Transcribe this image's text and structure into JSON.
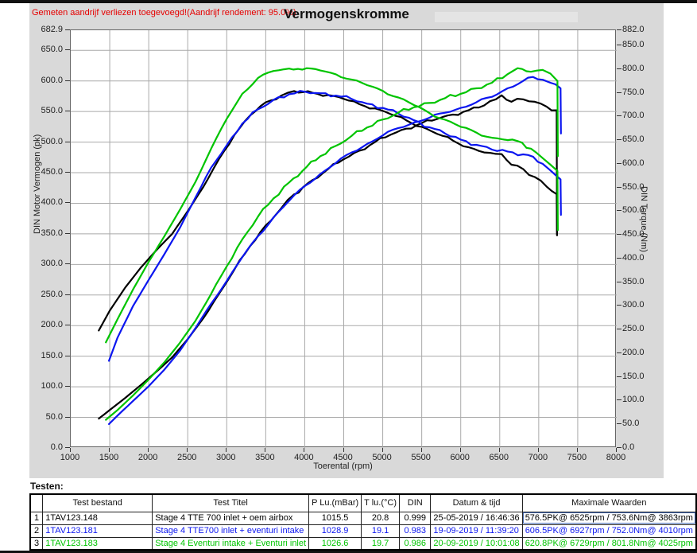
{
  "header": {
    "annotation": "Gemeten aandrijf verliezen toegevoegd!(Aandrijf rendement: 95.0%)",
    "title": "Vermogenskromme"
  },
  "chart_data": {
    "type": "line",
    "title": "Vermogenskromme",
    "xlabel": "Toerental (rpm)",
    "ylabel_left": "DIN Motor Vermogen (pk)",
    "ylabel_right": "DIN Torque (Nm)",
    "x_range": [
      1000,
      8000
    ],
    "y_left_range": [
      0,
      682.9
    ],
    "y_right_range": [
      0,
      882.0
    ],
    "grid": true,
    "x_ticks": [
      "1000",
      "1500",
      "2000",
      "2500",
      "3000",
      "3500",
      "4000",
      "4500",
      "5000",
      "5500",
      "6000",
      "6500",
      "7000",
      "7500",
      "8000"
    ],
    "y_left_ticks": [
      "682.9",
      "650.0",
      "600.0",
      "550.0",
      "500.0",
      "450.0",
      "400.0",
      "350.0",
      "300.0",
      "250.0",
      "200.0",
      "150.0",
      "100.0",
      "50.0",
      "0.0"
    ],
    "y_right_ticks": [
      "882.0",
      "850.0",
      "800.0",
      "750.0",
      "700.0",
      "650.0",
      "600.0",
      "550.0",
      "500.0",
      "450.0",
      "400.0",
      "350.0",
      "300.0",
      "250.0",
      "200.0",
      "150.0",
      "100.0",
      "50.0",
      "0.0"
    ],
    "series": [
      {
        "name": "1TAV123.148",
        "label": "Stage 4 TTE 700 inlet + oem airbox",
        "color": "#000000",
        "rpm": [
          1360,
          1500,
          1700,
          1900,
          2100,
          2300,
          2500,
          2700,
          2900,
          3100,
          3300,
          3500,
          3700,
          3863,
          4100,
          4300,
          4500,
          4700,
          4900,
          5100,
          5300,
          5500,
          5700,
          5900,
          6100,
          6300,
          6450,
          6525,
          6650,
          6800,
          6950,
          7100,
          7230,
          7235
        ],
        "power_pk": [
          48,
          62,
          82,
          103,
          125,
          148,
          178,
          212,
          252,
          292,
          330,
          364,
          392,
          414.6,
          438,
          456,
          472,
          486,
          500,
          512,
          522,
          531,
          538,
          545,
          552,
          560,
          570,
          576.5,
          566,
          570,
          566,
          558,
          552,
          348
        ],
        "torque_nm": [
          248,
          290,
          339,
          381,
          418,
          452,
          500,
          551,
          610,
          661,
          702,
          730,
          744,
          753.6,
          750,
          745,
          737,
          726,
          717,
          705,
          692,
          678,
          663,
          649,
          635,
          624,
          621,
          620.5,
          598,
          589,
          572,
          552,
          536,
          449
        ],
        "max": "576.5PK@ 6525rpm / 753.6Nm@ 3863rpm"
      },
      {
        "name": "1TAV123.181",
        "label": "Stage 4 TTE700 inlet + eventuri intake",
        "color": "#0b16f0",
        "rpm": [
          1490,
          1600,
          1800,
          2000,
          2200,
          2400,
          2600,
          2800,
          3000,
          3200,
          3400,
          3600,
          3800,
          4010,
          4200,
          4400,
          4600,
          4800,
          5000,
          5200,
          5400,
          5600,
          5800,
          6000,
          6200,
          6400,
          6600,
          6800,
          6927,
          7050,
          7150,
          7280,
          7285
        ],
        "power_pk": [
          39,
          53,
          77,
          101,
          128,
          159,
          196,
          236,
          273,
          312,
          346,
          377,
          404,
          429,
          448,
          466,
          483,
          497,
          511,
          523,
          532,
          540,
          548,
          556,
          565,
          574,
          588,
          600,
          606.5,
          602,
          597,
          588,
          514
        ],
        "torque_nm": [
          184,
          233,
          300,
          355,
          409,
          465,
          529,
          592,
          639,
          685,
          715,
          735,
          747,
          752,
          749,
          744,
          737,
          727,
          718,
          706,
          692,
          677,
          664,
          651,
          640,
          630,
          626,
          620,
          615,
          600,
          586,
          567,
          492
        ],
        "max": "606.5PK@ 6927rpm / 752.0Nm@ 4010rpm"
      },
      {
        "name": "1TAV123.183",
        "label": "Stage 4 Eventuri intake + Eventuri inlet",
        "color": "#00c400",
        "rpm": [
          1450,
          1600,
          1800,
          2000,
          2200,
          2400,
          2600,
          2800,
          3000,
          3200,
          3400,
          3600,
          3800,
          4025,
          4200,
          4400,
          4600,
          4800,
          5000,
          5200,
          5400,
          5600,
          5800,
          6000,
          6200,
          6400,
          6600,
          6729,
          6900,
          7050,
          7150,
          7240,
          7245
        ],
        "power_pk": [
          46,
          62,
          86,
          112,
          140,
          172,
          208,
          252,
          297,
          341,
          378,
          408,
          434,
          459.5,
          477,
          494,
          510,
          524,
          537,
          548,
          557,
          564,
          572,
          579,
          588,
          597,
          611,
          620.8,
          615,
          618,
          612,
          600,
          477
        ],
        "torque_nm": [
          223,
          272,
          335,
          393,
          447,
          503,
          562,
          632,
          695,
          748,
          781,
          796,
          801,
          801.8,
          797,
          789,
          778,
          766,
          754,
          740,
          724,
          707,
          693,
          678,
          666,
          655,
          650,
          648,
          632,
          612,
          598,
          585,
          460
        ],
        "max": "620.8PK@ 6729rpm / 801.8Nm@ 4025rpm"
      }
    ]
  },
  "table": {
    "label": "Testen:",
    "columns": [
      "",
      "Test bestand",
      "Test Titel",
      "P Lu.(mBar)",
      "T lu.(°C)",
      "DIN",
      "Datum & tijd",
      "Maximale Waarden"
    ],
    "rows": [
      {
        "nr": "1",
        "bestand": "1TAV123.148",
        "titel": "Stage 4 TTE 700 inlet + oem airbox",
        "p_lu": "1015.5",
        "t_lu": "20.8",
        "din": "0.999",
        "datum": "25-05-2019 / 16:46:36",
        "max": "576.5PK@ 6525rpm / 753.6Nm@ 3863rpm",
        "color": "#000000",
        "selected_max": true
      },
      {
        "nr": "2",
        "bestand": "1TAV123.181",
        "titel": "Stage 4 TTE700 inlet + eventuri intake",
        "p_lu": "1028.9",
        "t_lu": "19.1",
        "din": "0.983",
        "datum": "19-09-2019 / 11:39:20",
        "max": "606.5PK@ 6927rpm / 752.0Nm@ 4010rpm",
        "color": "#0b16f0",
        "selected_max": false
      },
      {
        "nr": "3",
        "bestand": "1TAV123.183",
        "titel": "Stage 4 Eventuri intake + Eventuri inlet",
        "p_lu": "1026.6",
        "t_lu": "19.7",
        "din": "0.986",
        "datum": "20-09-2019 / 10:01:08",
        "max": "620.8PK@ 6729rpm / 801.8Nm@ 4025rpm",
        "color": "#00c400",
        "selected_max": false
      }
    ]
  }
}
